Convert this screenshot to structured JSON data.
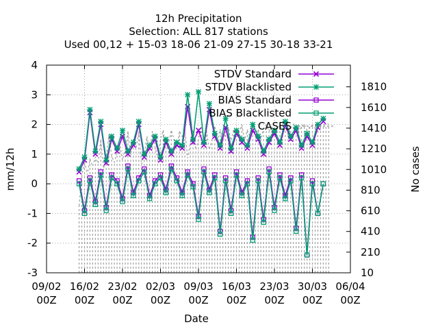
{
  "chart_data": {
    "type": "line",
    "title_lines": [
      "12h Precipitation",
      "Selection: ALL     817 stations",
      "Used  00,12  + 15-03 18-06 21-09 27-15 30-18 33-21"
    ],
    "xlabel": "Date",
    "ylabel": "mm/12h",
    "y2label": "No cases",
    "xlim": [
      "2009-02-09 00Z",
      "2009-04-06 00Z"
    ],
    "ylim": [
      -3,
      4
    ],
    "y2lim": [
      10,
      2020
    ],
    "x_ticks": [
      {
        "top": "09/02",
        "bottom": "00Z"
      },
      {
        "top": "16/02",
        "bottom": "00Z"
      },
      {
        "top": "23/02",
        "bottom": "00Z"
      },
      {
        "top": "02/03",
        "bottom": "00Z"
      },
      {
        "top": "09/03",
        "bottom": "00Z"
      },
      {
        "top": "16/03",
        "bottom": "00Z"
      },
      {
        "top": "23/03",
        "bottom": "00Z"
      },
      {
        "top": "30/03",
        "bottom": "00Z"
      },
      {
        "top": "06/04",
        "bottom": "00Z"
      }
    ],
    "y_ticks": [
      "-3",
      "-2",
      "-1",
      "0",
      "1",
      "2",
      "3",
      "4"
    ],
    "y2_ticks": [
      "10",
      "210",
      "410",
      "610",
      "810",
      "1010",
      "1210",
      "1410",
      "1610",
      "1810"
    ],
    "grid": true,
    "legend_position": "top-right",
    "series": [
      {
        "name": "STDV Standard",
        "color": "#9400d3",
        "marker": "cross",
        "x": [
          "15/02 00Z",
          "16/02 00Z",
          "17/02 00Z",
          "18/02 00Z",
          "19/02 00Z",
          "20/02 00Z",
          "21/02 00Z",
          "22/02 00Z",
          "23/02 00Z",
          "24/02 00Z",
          "25/02 00Z",
          "26/02 00Z",
          "27/02 00Z",
          "28/02 00Z",
          "01/03 00Z",
          "02/03 00Z",
          "03/03 00Z",
          "04/03 00Z",
          "05/03 00Z",
          "06/03 00Z",
          "07/03 00Z",
          "08/03 00Z",
          "09/03 00Z",
          "10/03 00Z",
          "11/03 00Z",
          "12/03 00Z",
          "13/03 00Z",
          "14/03 00Z",
          "15/03 00Z",
          "16/03 00Z",
          "17/03 00Z",
          "18/03 00Z",
          "19/03 00Z",
          "20/03 00Z",
          "21/03 00Z",
          "22/03 00Z",
          "23/03 00Z",
          "24/03 00Z",
          "25/03 00Z",
          "26/03 00Z",
          "27/03 00Z",
          "28/03 00Z",
          "29/03 00Z",
          "30/03 00Z",
          "31/03 00Z",
          "01/04 00Z"
        ],
        "y": [
          0.4,
          0.8,
          2.4,
          1.0,
          2.0,
          0.7,
          1.5,
          1.1,
          1.6,
          1.0,
          1.3,
          2.0,
          0.9,
          1.2,
          1.5,
          0.8,
          1.4,
          1.0,
          1.3,
          1.2,
          2.6,
          1.4,
          1.8,
          1.3,
          2.5,
          1.6,
          1.2,
          1.9,
          1.1,
          1.7,
          1.4,
          1.2,
          1.8,
          1.5,
          1.0,
          1.4,
          1.7,
          1.3,
          2.0,
          1.5,
          1.8,
          1.2,
          1.6,
          1.3,
          1.9,
          2.1
        ]
      },
      {
        "name": "STDV Blacklisted",
        "color": "#009e73",
        "marker": "star",
        "x": [
          "15/02 00Z",
          "16/02 00Z",
          "17/02 00Z",
          "18/02 00Z",
          "19/02 00Z",
          "20/02 00Z",
          "21/02 00Z",
          "22/02 00Z",
          "23/02 00Z",
          "24/02 00Z",
          "25/02 00Z",
          "26/02 00Z",
          "27/02 00Z",
          "28/02 00Z",
          "01/03 00Z",
          "02/03 00Z",
          "03/03 00Z",
          "04/03 00Z",
          "05/03 00Z",
          "06/03 00Z",
          "07/03 00Z",
          "08/03 00Z",
          "09/03 00Z",
          "10/03 00Z",
          "11/03 00Z",
          "12/03 00Z",
          "13/03 00Z",
          "14/03 00Z",
          "15/03 00Z",
          "16/03 00Z",
          "17/03 00Z",
          "18/03 00Z",
          "19/03 00Z",
          "20/03 00Z",
          "21/03 00Z",
          "22/03 00Z",
          "23/03 00Z",
          "24/03 00Z",
          "25/03 00Z",
          "26/03 00Z",
          "27/03 00Z",
          "28/03 00Z",
          "29/03 00Z",
          "30/03 00Z",
          "31/03 00Z",
          "01/04 00Z"
        ],
        "y": [
          0.5,
          0.9,
          2.5,
          1.1,
          2.1,
          0.8,
          1.6,
          1.2,
          1.8,
          1.1,
          1.4,
          2.1,
          1.0,
          1.3,
          1.6,
          0.9,
          1.5,
          1.1,
          1.4,
          1.3,
          3.0,
          1.5,
          3.1,
          1.4,
          2.7,
          1.7,
          1.3,
          2.2,
          1.2,
          1.8,
          1.5,
          1.3,
          2.0,
          1.6,
          1.1,
          1.5,
          1.8,
          1.4,
          2.1,
          1.6,
          1.9,
          1.3,
          1.7,
          1.4,
          2.0,
          2.2
        ]
      },
      {
        "name": "BIAS Standard",
        "color": "#9400d3",
        "marker": "square",
        "x": [
          "15/02 00Z",
          "16/02 00Z",
          "17/02 00Z",
          "18/02 00Z",
          "19/02 00Z",
          "20/02 00Z",
          "21/02 00Z",
          "22/02 00Z",
          "23/02 00Z",
          "24/02 00Z",
          "25/02 00Z",
          "26/02 00Z",
          "27/02 00Z",
          "28/02 00Z",
          "01/03 00Z",
          "02/03 00Z",
          "03/03 00Z",
          "04/03 00Z",
          "05/03 00Z",
          "06/03 00Z",
          "07/03 00Z",
          "08/03 00Z",
          "09/03 00Z",
          "10/03 00Z",
          "11/03 00Z",
          "12/03 00Z",
          "13/03 00Z",
          "14/03 00Z",
          "15/03 00Z",
          "16/03 00Z",
          "17/03 00Z",
          "18/03 00Z",
          "19/03 00Z",
          "20/03 00Z",
          "21/03 00Z",
          "22/03 00Z",
          "23/03 00Z",
          "24/03 00Z",
          "25/03 00Z",
          "26/03 00Z",
          "27/03 00Z",
          "28/03 00Z",
          "29/03 00Z",
          "30/03 00Z",
          "31/03 00Z",
          "01/04 00Z"
        ],
        "y": [
          0.1,
          -0.9,
          0.2,
          -0.6,
          0.4,
          -0.8,
          0.3,
          0.1,
          -0.5,
          0.6,
          -0.3,
          0.2,
          0.5,
          -0.4,
          0.1,
          0.3,
          -0.2,
          0.6,
          0.2,
          -0.3,
          0.4,
          0.0,
          -1.1,
          0.5,
          -0.2,
          0.3,
          -1.6,
          0.2,
          -0.9,
          0.4,
          -0.3,
          0.1,
          -1.8,
          0.2,
          -1.2,
          0.5,
          -0.8,
          0.3,
          -0.4,
          0.2,
          -1.5,
          0.3,
          -2.4,
          0.1,
          -1.0,
          0.0
        ]
      },
      {
        "name": "BIAS Blacklisted",
        "color": "#009e73",
        "marker": "square",
        "x": [
          "15/02 00Z",
          "16/02 00Z",
          "17/02 00Z",
          "18/02 00Z",
          "19/02 00Z",
          "20/02 00Z",
          "21/02 00Z",
          "22/02 00Z",
          "23/02 00Z",
          "24/02 00Z",
          "25/02 00Z",
          "26/02 00Z",
          "27/02 00Z",
          "28/02 00Z",
          "01/03 00Z",
          "02/03 00Z",
          "03/03 00Z",
          "04/03 00Z",
          "05/03 00Z",
          "06/03 00Z",
          "07/03 00Z",
          "08/03 00Z",
          "09/03 00Z",
          "10/03 00Z",
          "11/03 00Z",
          "12/03 00Z",
          "13/03 00Z",
          "14/03 00Z",
          "15/03 00Z",
          "16/03 00Z",
          "17/03 00Z",
          "18/03 00Z",
          "19/03 00Z",
          "20/03 00Z",
          "21/03 00Z",
          "22/03 00Z",
          "23/03 00Z",
          "24/03 00Z",
          "25/03 00Z",
          "26/03 00Z",
          "27/03 00Z",
          "28/03 00Z",
          "29/03 00Z",
          "30/03 00Z",
          "31/03 00Z",
          "01/04 00Z"
        ],
        "y": [
          0.0,
          -1.0,
          0.1,
          -0.7,
          0.3,
          -0.9,
          0.2,
          0.0,
          -0.6,
          0.5,
          -0.4,
          0.1,
          0.4,
          -0.5,
          0.0,
          0.2,
          -0.3,
          0.5,
          0.1,
          -0.4,
          0.3,
          -0.1,
          -1.2,
          0.4,
          -0.3,
          0.2,
          -1.7,
          0.1,
          -1.0,
          0.3,
          -0.4,
          0.0,
          -1.9,
          0.1,
          -1.3,
          0.4,
          -0.9,
          0.2,
          -0.5,
          0.1,
          -1.6,
          0.2,
          -2.4,
          0.0,
          -1.0,
          0.0
        ]
      },
      {
        "name": "CASES",
        "color": "#a0a0a0",
        "axis": "y2",
        "style": "dashed-impulse",
        "x": [
          "15/02 00Z",
          "15/02 12Z",
          "16/02 00Z",
          "16/02 12Z",
          "17/02 00Z",
          "17/02 12Z",
          "18/02 00Z",
          "18/02 12Z",
          "19/02 00Z",
          "19/02 12Z",
          "20/02 00Z",
          "20/02 12Z",
          "21/02 00Z",
          "21/02 12Z",
          "22/02 00Z",
          "22/02 12Z",
          "23/02 00Z",
          "23/02 12Z",
          "24/02 00Z",
          "24/02 12Z",
          "25/02 00Z",
          "25/02 12Z",
          "26/02 00Z",
          "26/02 12Z",
          "27/02 00Z",
          "27/02 12Z",
          "28/02 00Z",
          "28/02 12Z",
          "01/03 00Z",
          "01/03 12Z",
          "02/03 00Z",
          "02/03 12Z",
          "03/03 00Z",
          "03/03 12Z",
          "04/03 00Z",
          "04/03 12Z",
          "05/03 00Z",
          "05/03 12Z",
          "06/03 00Z",
          "06/03 12Z",
          "07/03 00Z",
          "07/03 12Z",
          "08/03 00Z",
          "08/03 12Z",
          "09/03 00Z",
          "09/03 12Z",
          "10/03 00Z",
          "10/03 12Z",
          "11/03 00Z",
          "11/03 12Z",
          "12/03 00Z",
          "12/03 12Z",
          "13/03 00Z",
          "13/03 12Z",
          "14/03 00Z",
          "14/03 12Z",
          "15/03 00Z",
          "15/03 12Z",
          "16/03 00Z",
          "16/03 12Z",
          "17/03 00Z",
          "17/03 12Z",
          "18/03 00Z",
          "18/03 12Z",
          "19/03 00Z",
          "19/03 12Z",
          "20/03 00Z",
          "20/03 12Z",
          "21/03 00Z",
          "21/03 12Z",
          "22/03 00Z",
          "22/03 12Z",
          "23/03 00Z",
          "23/03 12Z",
          "24/03 00Z",
          "24/03 12Z",
          "25/03 00Z",
          "25/03 12Z",
          "26/03 00Z",
          "26/03 12Z",
          "27/03 00Z",
          "27/03 12Z",
          "28/03 00Z",
          "28/03 12Z",
          "29/03 00Z",
          "29/03 12Z",
          "30/03 00Z",
          "30/03 12Z",
          "31/03 00Z",
          "31/03 12Z",
          "01/04 00Z",
          "01/04 12Z",
          "02/04 00Z"
        ],
        "y": [
          660,
          950,
          1090,
          960,
          1110,
          1040,
          1130,
          1070,
          1300,
          1020,
          1120,
          1350,
          1140,
          1080,
          1180,
          1250,
          1100,
          1200,
          1380,
          1150,
          1290,
          1200,
          1380,
          1060,
          1150,
          1330,
          1190,
          1380,
          1220,
          1140,
          1300,
          1390,
          1180,
          1260,
          1390,
          1300,
          1210,
          1380,
          1330,
          1400,
          1120,
          1270,
          1390,
          1200,
          1300,
          1430,
          1280,
          1380,
          1200,
          1300,
          1430,
          1290,
          1400,
          1270,
          1370,
          1420,
          1290,
          1400,
          1320,
          1380,
          1440,
          1300,
          1390,
          1330,
          1420,
          1360,
          1400,
          1300,
          1410,
          1440,
          1380,
          1420,
          1350,
          1400,
          1440,
          1380,
          1420,
          1350,
          1410,
          1450,
          1400,
          1380,
          1430,
          1450,
          1390,
          1420,
          1440,
          1410,
          1450,
          1430,
          1440,
          1450,
          1450
        ]
      }
    ]
  }
}
